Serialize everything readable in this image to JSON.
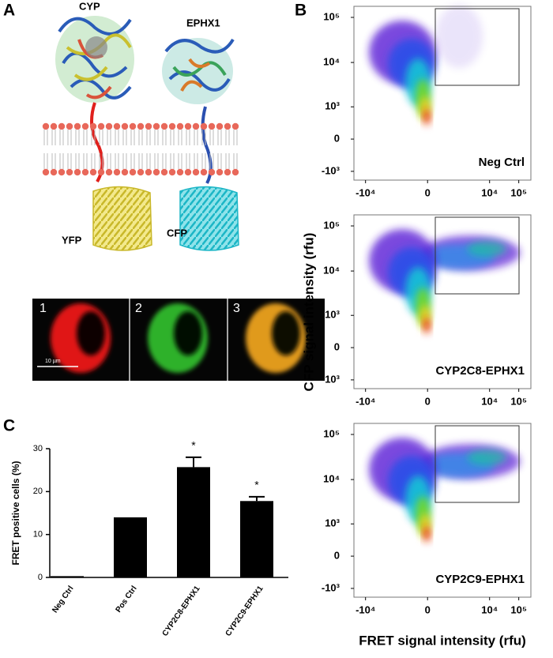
{
  "figure": {
    "panel_letters": [
      "A",
      "B",
      "C"
    ],
    "panel_a": {
      "protein_labels": [
        "CYP",
        "EPHX1"
      ],
      "fluorophore_labels": [
        "YFP",
        "CFP"
      ],
      "micrograph_labels": [
        "1",
        "2",
        "3"
      ],
      "scale_bar": "10 µm"
    },
    "panel_b": {
      "y_label": "CFP signal intensity (rfu)",
      "x_label": "FRET signal intensity (rfu)"
    }
  },
  "chart_data": [
    {
      "type": "density",
      "label": "Neg Ctrl",
      "scale": "biexponential",
      "xlim": [
        -25000,
        260000
      ],
      "ylim": [
        -1600,
        176000
      ],
      "xticks": [
        {
          "value": -10000,
          "label": "-10⁴"
        },
        0,
        {
          "value": 10000,
          "label": "10⁴"
        },
        {
          "value": 100000,
          "label": "10⁵"
        }
      ],
      "yticks": [
        {
          "value": 100000,
          "label": "10⁵"
        },
        {
          "value": 10000,
          "label": "10⁴"
        },
        {
          "value": 1000,
          "label": "10³"
        },
        0,
        {
          "value": -1000,
          "label": "-10³"
        }
      ]
    },
    {
      "type": "density",
      "label": "CYP2C8-EPHX1",
      "scale": "biexponential",
      "xlim": [
        -25000,
        260000
      ],
      "ylim": [
        -1600,
        176000
      ],
      "xticks": [
        {
          "value": -10000,
          "label": "-10⁴"
        },
        0,
        {
          "value": 10000,
          "label": "10⁴"
        },
        {
          "value": 100000,
          "label": "10⁵"
        }
      ],
      "yticks": [
        {
          "value": 100000,
          "label": "10⁵"
        },
        {
          "value": 10000,
          "label": "10⁴"
        },
        {
          "value": 1000,
          "label": "10³"
        },
        0,
        {
          "value": -1000,
          "label": "-10³"
        }
      ]
    },
    {
      "type": "density",
      "label": "CYP2C9-EPHX1",
      "scale": "biexponential",
      "xlim": [
        -25000,
        260000
      ],
      "ylim": [
        -1600,
        176000
      ],
      "xticks": [
        {
          "value": -10000,
          "label": "-10⁴"
        },
        0,
        {
          "value": 10000,
          "label": "10⁴"
        },
        {
          "value": 100000,
          "label": "10⁵"
        }
      ],
      "yticks": [
        {
          "value": 100000,
          "label": "10⁵"
        },
        {
          "value": 10000,
          "label": "10⁴"
        },
        {
          "value": 1000,
          "label": "10³"
        },
        0,
        {
          "value": -1000,
          "label": "-10³"
        }
      ]
    },
    {
      "type": "bar",
      "y_label": "FRET positive cells (%)",
      "categories": [
        "Neg Ctrl",
        "Pos Ctrl",
        "CYP2C8-EPHX1",
        "CYP2C9-EPHX1"
      ],
      "values": [
        0.3,
        14,
        25.7,
        17.8
      ],
      "errors": [
        null,
        null,
        2.3,
        1.0
      ],
      "annotations": [
        null,
        null,
        "*",
        "*"
      ],
      "color": "#000000",
      "ylim": [
        0,
        30
      ],
      "yticks": [
        0,
        10,
        20,
        30
      ]
    }
  ]
}
